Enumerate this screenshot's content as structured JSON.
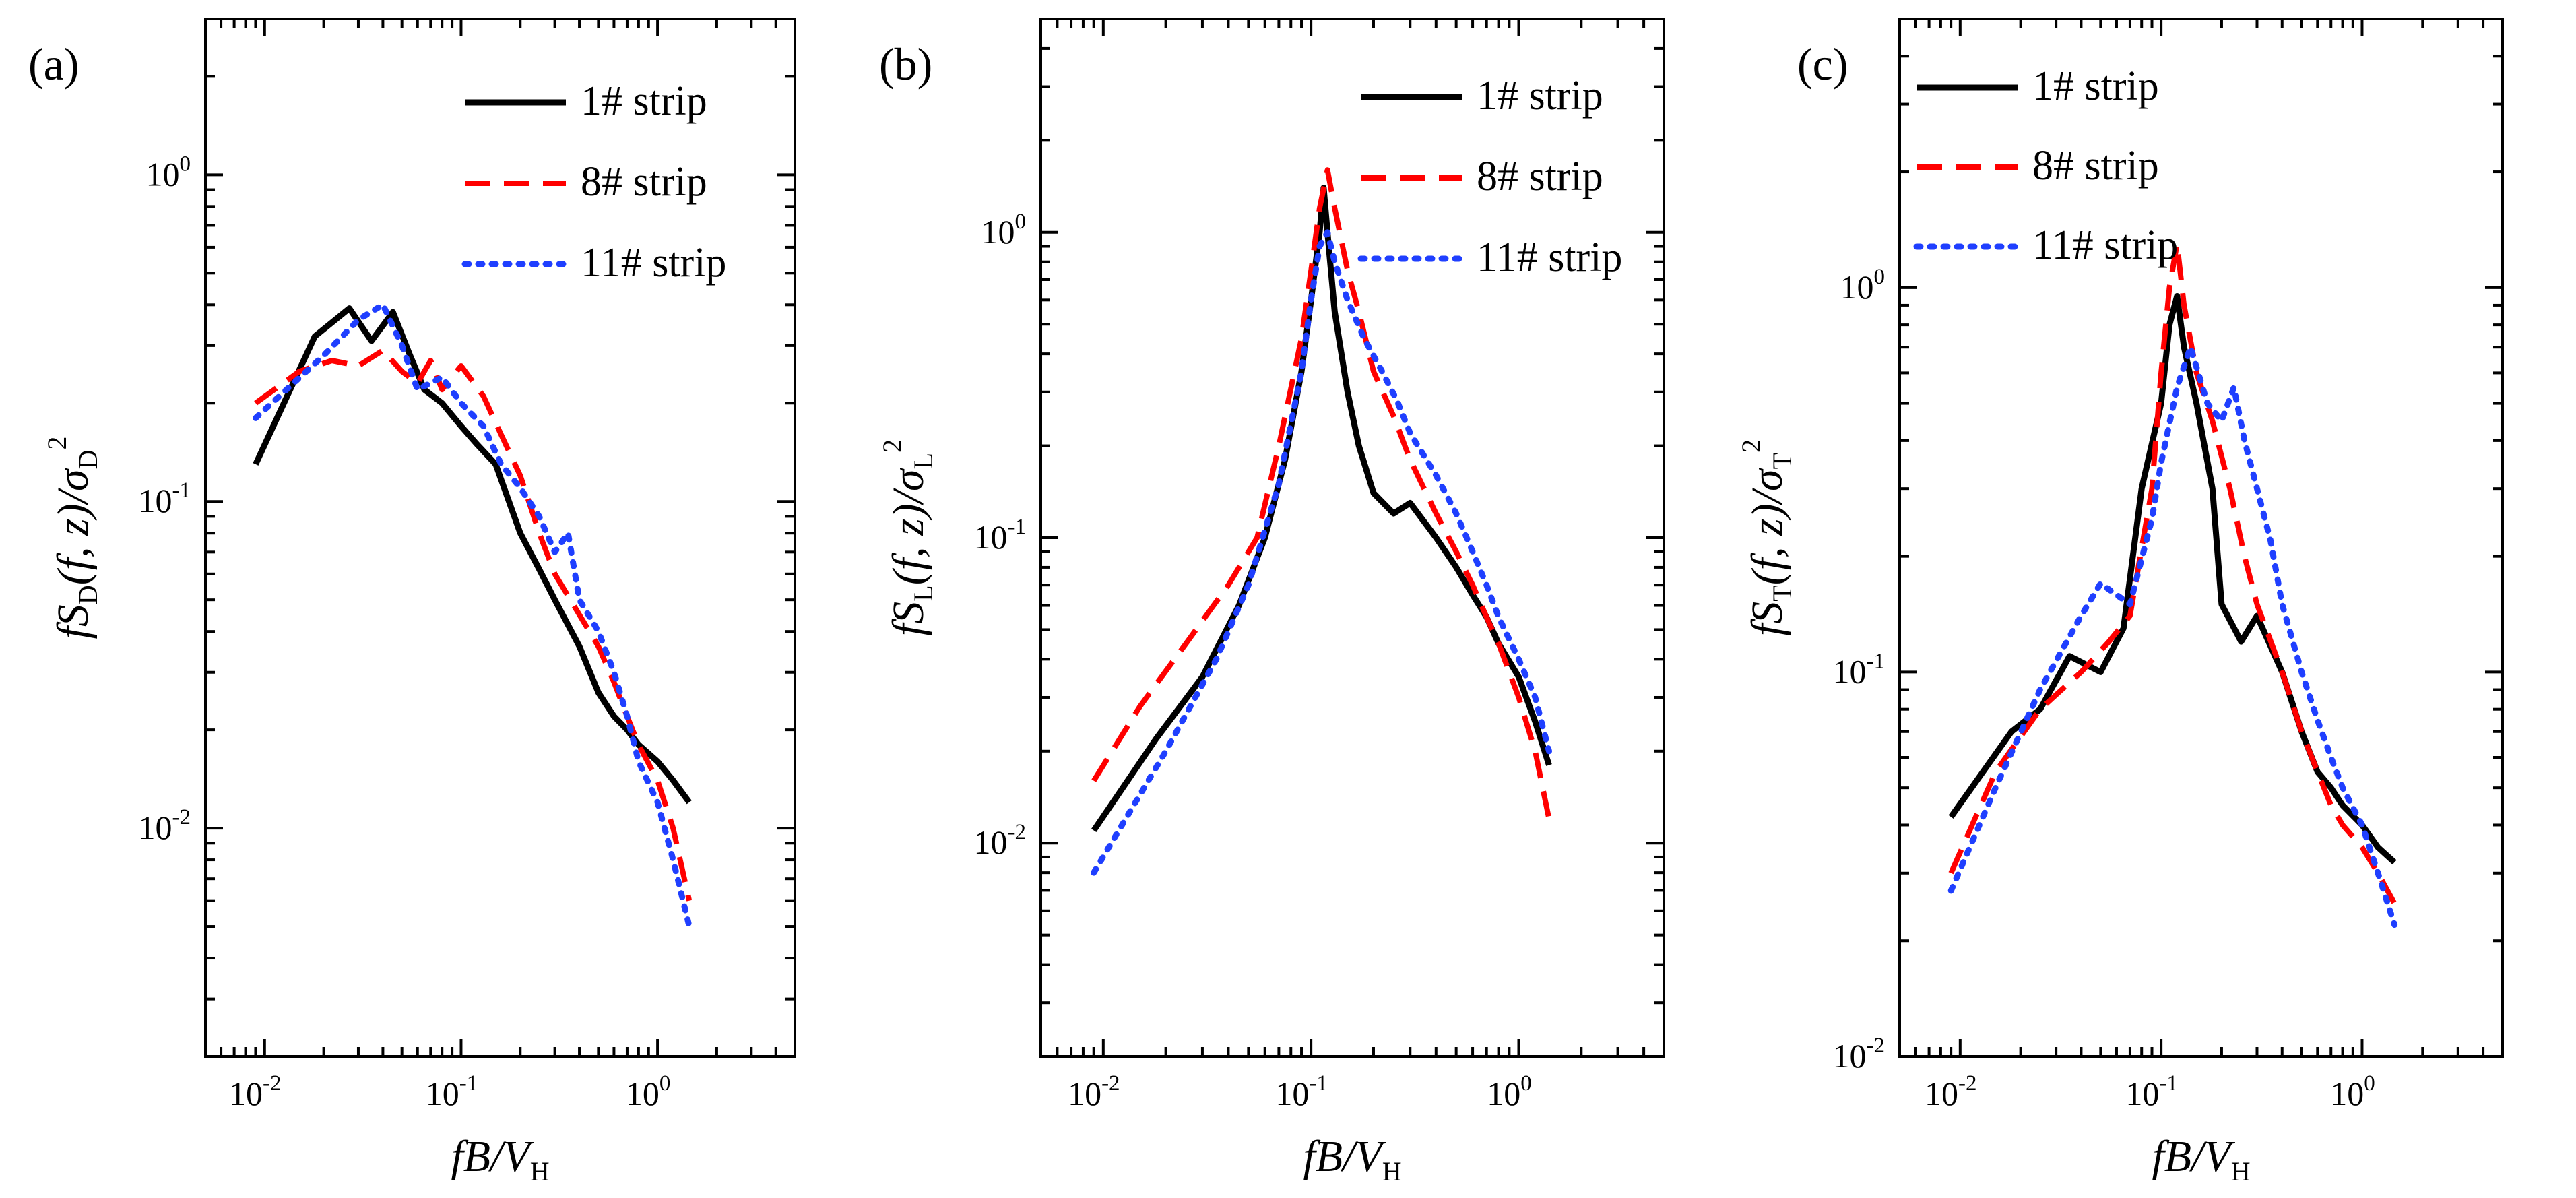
{
  "figure": {
    "x_axis": {
      "label_prefix": "fB/V",
      "label_subscript": "H"
    },
    "series_styles": [
      {
        "name": "1# strip",
        "color": "#000000",
        "dash": "solid"
      },
      {
        "name": "8# strip",
        "color": "#ff0000",
        "dash": "dashed"
      },
      {
        "name": "11# strip",
        "color": "#1f3fff",
        "dash": "dotted"
      }
    ]
  },
  "chart_data": [
    {
      "type": "line",
      "panel_tag": "(a)",
      "title": "",
      "xlabel": "fB/V_H",
      "ylabel": "fS_D(f,z)/σ_D^2",
      "ylabel_parts": {
        "pre": "fS",
        "sub": "D",
        "mid": "(f, z)/σ",
        "sub2": "D",
        "sup": "2"
      },
      "xscale": "log",
      "yscale": "log",
      "xlim": [
        0.005,
        5
      ],
      "ylim": [
        0.002,
        3
      ],
      "x_ticks": [
        {
          "exp": "-2"
        },
        {
          "exp": "-1"
        },
        {
          "exp": "0"
        }
      ],
      "y_ticks": [
        {
          "exp": "-2"
        },
        {
          "exp": "-1"
        },
        {
          "exp": "0"
        }
      ],
      "legend_position": "top-right",
      "series": [
        {
          "name": "1# strip",
          "x": [
            0.009,
            0.018,
            0.027,
            0.035,
            0.045,
            0.055,
            0.065,
            0.08,
            0.1,
            0.12,
            0.15,
            0.2,
            0.25,
            0.3,
            0.4,
            0.5,
            0.6,
            0.7,
            0.8,
            1.0,
            1.2,
            1.45
          ],
          "y": [
            0.13,
            0.32,
            0.39,
            0.31,
            0.38,
            0.28,
            0.22,
            0.2,
            0.17,
            0.15,
            0.13,
            0.08,
            0.062,
            0.05,
            0.036,
            0.026,
            0.022,
            0.02,
            0.018,
            0.016,
            0.014,
            0.012
          ]
        },
        {
          "name": "8# strip",
          "x": [
            0.009,
            0.015,
            0.022,
            0.03,
            0.04,
            0.05,
            0.06,
            0.07,
            0.08,
            0.1,
            0.13,
            0.16,
            0.2,
            0.25,
            0.3,
            0.4,
            0.5,
            0.6,
            0.7,
            0.8,
            1.0,
            1.2,
            1.45
          ],
          "y": [
            0.2,
            0.25,
            0.27,
            0.26,
            0.29,
            0.25,
            0.23,
            0.27,
            0.22,
            0.26,
            0.21,
            0.16,
            0.12,
            0.08,
            0.06,
            0.045,
            0.036,
            0.028,
            0.022,
            0.018,
            0.014,
            0.01,
            0.006
          ]
        },
        {
          "name": "11# strip",
          "x": [
            0.009,
            0.02,
            0.03,
            0.04,
            0.05,
            0.06,
            0.08,
            0.1,
            0.13,
            0.16,
            0.2,
            0.25,
            0.3,
            0.35,
            0.4,
            0.5,
            0.6,
            0.7,
            0.8,
            1.0,
            1.2,
            1.45
          ],
          "y": [
            0.18,
            0.28,
            0.36,
            0.4,
            0.3,
            0.22,
            0.24,
            0.2,
            0.17,
            0.13,
            0.11,
            0.09,
            0.07,
            0.08,
            0.05,
            0.04,
            0.03,
            0.022,
            0.016,
            0.012,
            0.008,
            0.005
          ]
        }
      ]
    },
    {
      "type": "line",
      "panel_tag": "(b)",
      "title": "",
      "xlabel": "fB/V_H",
      "ylabel": "fS_L(f,z)/σ_L^2",
      "ylabel_parts": {
        "pre": "fS",
        "sub": "L",
        "mid": "(f, z)/σ",
        "sub2": "L",
        "sup": "2"
      },
      "xscale": "log",
      "yscale": "log",
      "xlim": [
        0.005,
        5
      ],
      "ylim": [
        0.002,
        5
      ],
      "x_ticks": [
        {
          "exp": "-2"
        },
        {
          "exp": "-1"
        },
        {
          "exp": "0"
        }
      ],
      "y_ticks": [
        {
          "exp": "-2"
        },
        {
          "exp": "-1"
        },
        {
          "exp": "0"
        }
      ],
      "legend_position": "top-right",
      "series": [
        {
          "name": "1# strip",
          "x": [
            0.009,
            0.018,
            0.03,
            0.045,
            0.06,
            0.075,
            0.09,
            0.1,
            0.11,
            0.115,
            0.12,
            0.13,
            0.15,
            0.17,
            0.2,
            0.25,
            0.3,
            0.4,
            0.5,
            0.6,
            0.7,
            0.8,
            1.0,
            1.2,
            1.4
          ],
          "y": [
            0.011,
            0.022,
            0.035,
            0.06,
            0.1,
            0.18,
            0.35,
            0.6,
            1.0,
            1.4,
            1.0,
            0.55,
            0.3,
            0.2,
            0.14,
            0.12,
            0.13,
            0.1,
            0.08,
            0.065,
            0.055,
            0.045,
            0.035,
            0.025,
            0.018
          ]
        },
        {
          "name": "8# strip",
          "x": [
            0.009,
            0.015,
            0.025,
            0.04,
            0.055,
            0.07,
            0.09,
            0.1,
            0.11,
            0.12,
            0.13,
            0.15,
            0.17,
            0.2,
            0.25,
            0.3,
            0.4,
            0.5,
            0.6,
            0.7,
            0.8,
            1.0,
            1.2,
            1.4
          ],
          "y": [
            0.016,
            0.028,
            0.045,
            0.07,
            0.1,
            0.2,
            0.45,
            0.75,
            1.2,
            1.6,
            1.2,
            0.75,
            0.55,
            0.35,
            0.25,
            0.18,
            0.12,
            0.09,
            0.07,
            0.055,
            0.045,
            0.03,
            0.02,
            0.012
          ]
        },
        {
          "name": "11# strip",
          "x": [
            0.009,
            0.02,
            0.035,
            0.05,
            0.07,
            0.09,
            0.1,
            0.11,
            0.12,
            0.13,
            0.15,
            0.18,
            0.22,
            0.26,
            0.3,
            0.4,
            0.5,
            0.6,
            0.7,
            0.8,
            1.0,
            1.2,
            1.4
          ],
          "y": [
            0.008,
            0.02,
            0.04,
            0.07,
            0.15,
            0.35,
            0.6,
            0.9,
            1.0,
            0.8,
            0.6,
            0.45,
            0.35,
            0.28,
            0.22,
            0.16,
            0.12,
            0.09,
            0.07,
            0.055,
            0.04,
            0.03,
            0.02
          ]
        }
      ]
    },
    {
      "type": "line",
      "panel_tag": "(c)",
      "title": "",
      "xlabel": "fB/V_H",
      "ylabel": "fS_T(f,z)/σ_T^2",
      "ylabel_parts": {
        "pre": "fS",
        "sub": "T",
        "mid": "(f, z)/σ",
        "sub2": "T",
        "sup": "2"
      },
      "xscale": "log",
      "yscale": "log",
      "xlim": [
        0.005,
        5
      ],
      "ylim": [
        0.01,
        5
      ],
      "x_ticks": [
        {
          "exp": "-2"
        },
        {
          "exp": "-1"
        },
        {
          "exp": "0"
        }
      ],
      "y_ticks": [
        {
          "exp": "-2"
        },
        {
          "exp": "-1"
        },
        {
          "exp": "0"
        }
      ],
      "legend_position": "top-left",
      "series": [
        {
          "name": "1# strip",
          "x": [
            0.009,
            0.018,
            0.025,
            0.035,
            0.05,
            0.065,
            0.08,
            0.1,
            0.11,
            0.12,
            0.13,
            0.15,
            0.18,
            0.2,
            0.25,
            0.3,
            0.4,
            0.5,
            0.6,
            0.7,
            0.8,
            1.0,
            1.2,
            1.45
          ],
          "y": [
            0.042,
            0.07,
            0.08,
            0.11,
            0.1,
            0.13,
            0.3,
            0.5,
            0.8,
            0.95,
            0.7,
            0.5,
            0.3,
            0.15,
            0.12,
            0.14,
            0.1,
            0.07,
            0.055,
            0.05,
            0.045,
            0.04,
            0.035,
            0.032
          ]
        },
        {
          "name": "8# strip",
          "x": [
            0.009,
            0.015,
            0.025,
            0.04,
            0.055,
            0.07,
            0.09,
            0.1,
            0.11,
            0.12,
            0.13,
            0.15,
            0.18,
            0.22,
            0.26,
            0.3,
            0.4,
            0.5,
            0.6,
            0.7,
            0.8,
            1.0,
            1.2,
            1.45
          ],
          "y": [
            0.03,
            0.055,
            0.08,
            0.1,
            0.12,
            0.14,
            0.3,
            0.6,
            1.0,
            1.3,
            0.9,
            0.6,
            0.45,
            0.3,
            0.2,
            0.15,
            0.1,
            0.07,
            0.055,
            0.045,
            0.04,
            0.035,
            0.03,
            0.025
          ]
        },
        {
          "name": "11# strip",
          "x": [
            0.009,
            0.015,
            0.025,
            0.04,
            0.05,
            0.07,
            0.09,
            0.1,
            0.12,
            0.14,
            0.17,
            0.2,
            0.23,
            0.26,
            0.3,
            0.35,
            0.4,
            0.5,
            0.6,
            0.7,
            0.8,
            1.0,
            1.2,
            1.45
          ],
          "y": [
            0.027,
            0.05,
            0.09,
            0.14,
            0.17,
            0.15,
            0.25,
            0.35,
            0.55,
            0.7,
            0.5,
            0.45,
            0.55,
            0.4,
            0.3,
            0.22,
            0.15,
            0.1,
            0.075,
            0.06,
            0.05,
            0.04,
            0.03,
            0.022
          ]
        }
      ]
    }
  ]
}
